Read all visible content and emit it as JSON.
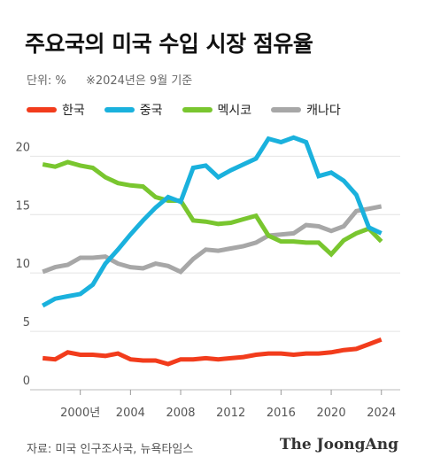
{
  "title": "주요국의 미국 수입 시장 점유율",
  "unit_label": "단위: %",
  "note": "※2024년은 9월 기준",
  "source": "자료: 미국 인구조사국, 뉴욕타임스",
  "brand": "The JoongAng",
  "chart_data": {
    "type": "line",
    "ylim": [
      0,
      22
    ],
    "xlim": [
      1996,
      2025.5
    ],
    "yticks": [
      0,
      5,
      10,
      15,
      20
    ],
    "xticks": [
      {
        "value": 2000,
        "label": "2000년"
      },
      {
        "value": 2004,
        "label": "2004"
      },
      {
        "value": 2008,
        "label": "2008"
      },
      {
        "value": 2012,
        "label": "2012"
      },
      {
        "value": 2016,
        "label": "2016"
      },
      {
        "value": 2020,
        "label": "2020"
      },
      {
        "value": 2024,
        "label": "2024"
      }
    ],
    "x": [
      1997,
      1998,
      1999,
      2000,
      2001,
      2002,
      2003,
      2004,
      2005,
      2006,
      2007,
      2008,
      2009,
      2010,
      2011,
      2012,
      2013,
      2014,
      2015,
      2016,
      2017,
      2018,
      2019,
      2020,
      2021,
      2022,
      2023,
      2024
    ],
    "series": [
      {
        "name": "한국",
        "color": "#f23c1c",
        "values": [
          2.7,
          2.6,
          3.2,
          3.0,
          3.0,
          2.9,
          3.1,
          2.6,
          2.5,
          2.5,
          2.2,
          2.6,
          2.6,
          2.7,
          2.6,
          2.7,
          2.8,
          3.0,
          3.1,
          3.1,
          3.0,
          3.1,
          3.1,
          3.2,
          3.4,
          3.5,
          3.9,
          4.3
        ]
      },
      {
        "name": "중국",
        "color": "#1ab1dd",
        "values": [
          7.2,
          7.8,
          8.0,
          8.2,
          9.0,
          10.8,
          12.0,
          13.3,
          14.5,
          15.6,
          16.5,
          16.1,
          19.0,
          19.2,
          18.2,
          18.8,
          19.3,
          19.8,
          21.5,
          21.2,
          21.6,
          21.2,
          18.3,
          18.6,
          17.9,
          16.7,
          13.9,
          13.4
        ]
      },
      {
        "name": "멕시코",
        "color": "#79c62f",
        "values": [
          19.3,
          19.1,
          19.5,
          19.2,
          19.0,
          18.2,
          17.7,
          17.5,
          17.4,
          16.5,
          16.2,
          16.2,
          14.5,
          14.4,
          14.2,
          14.3,
          14.6,
          14.9,
          13.2,
          12.7,
          12.7,
          12.6,
          12.6,
          11.6,
          12.8,
          13.4,
          13.8,
          12.7
        ]
      },
      {
        "name": "캐나다",
        "color": "#a7a7a7",
        "values": [
          10.1,
          10.5,
          10.7,
          11.3,
          11.3,
          11.4,
          10.8,
          10.5,
          10.4,
          10.8,
          10.6,
          10.1,
          11.2,
          12.0,
          11.9,
          12.1,
          12.3,
          12.6,
          13.2,
          13.3,
          13.4,
          14.1,
          14.0,
          13.6,
          14.0,
          15.3,
          15.5,
          15.7
        ]
      }
    ]
  }
}
